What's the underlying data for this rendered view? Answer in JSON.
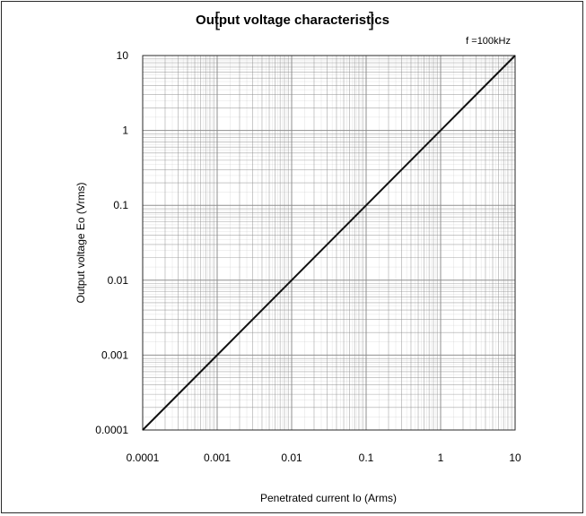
{
  "chart_data": {
    "type": "line",
    "title": "Output voltage characteristics",
    "annotation": "f =100kHz",
    "xlabel": "Penetrated current Io (Arms)",
    "ylabel": "Output voltage Eo (Vrms)",
    "x_scale": "log",
    "y_scale": "log",
    "xlim": [
      0.0001,
      10
    ],
    "ylim": [
      0.0001,
      10
    ],
    "x_ticks": [
      "0.0001",
      "0.001",
      "0.01",
      "0.1",
      "1",
      "10"
    ],
    "y_ticks": [
      "0.0001",
      "0.001",
      "0.01",
      "0.1",
      "1",
      "10"
    ],
    "grid": true,
    "series": [
      {
        "x": [
          0.0001,
          10
        ],
        "y": [
          0.0001,
          10
        ]
      }
    ]
  },
  "colors": {
    "grid": "#8a8a8a",
    "line": "#111111",
    "border": "#2a2a2a"
  }
}
